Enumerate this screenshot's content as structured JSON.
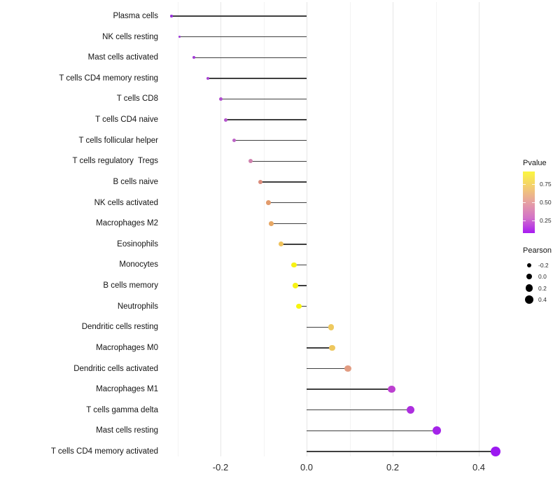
{
  "chart_data": {
    "type": "scatter",
    "subtype": "lollipop",
    "title": "",
    "xlabel": "",
    "ylabel": "",
    "grid": true,
    "x_range": [
      -0.33,
      0.49
    ],
    "x_major_ticks": [
      -0.2,
      0.0,
      0.2,
      0.4
    ],
    "x_major_tick_labels": [
      "-0.2",
      "0.0",
      "0.2",
      "0.4"
    ],
    "x_minor_ticks": [
      -0.3,
      -0.1,
      0.1,
      0.3
    ],
    "baseline_x": 0.0,
    "categories": [
      "Plasma cells",
      "NK cells resting",
      "Mast cells activated",
      "T cells CD4 memory resting",
      "T cells CD8",
      "T cells CD4 naive",
      "T cells follicular helper",
      "T cells regulatory  Tregs",
      "B cells naive",
      "NK cells activated",
      "Macrophages M2",
      "Eosinophils",
      "Monocytes",
      "B cells memory",
      "Neutrophils",
      "Dendritic cells resting",
      "Macrophages M0",
      "Dendritic cells activated",
      "Macrophages M1",
      "T cells gamma delta",
      "Mast cells resting",
      "T cells CD4 memory activated"
    ],
    "points": [
      {
        "label": "Plasma cells",
        "pearson": -0.314,
        "pvalue_est": 0.12,
        "color": "#9733D8",
        "size": 3.4
      },
      {
        "label": "NK cells resting",
        "pearson": -0.295,
        "pvalue_est": 0.13,
        "color": "#9B36D6",
        "size": 3.7
      },
      {
        "label": "Mast cells activated",
        "pearson": -0.262,
        "pvalue_est": 0.15,
        "color": "#A33CD6",
        "size": 4.1
      },
      {
        "label": "T cells CD4 memory resting",
        "pearson": -0.229,
        "pvalue_est": 0.17,
        "color": "#A944D3",
        "size": 4.6
      },
      {
        "label": "T cells CD8",
        "pearson": -0.2,
        "pvalue_est": 0.19,
        "color": "#B04DCF",
        "size": 5.0
      },
      {
        "label": "T cells CD4 naive",
        "pearson": -0.188,
        "pvalue_est": 0.21,
        "color": "#B556CC",
        "size": 5.2
      },
      {
        "label": "T cells follicular helper",
        "pearson": -0.168,
        "pvalue_est": 0.24,
        "color": "#BD64C6",
        "size": 5.4
      },
      {
        "label": "T cells regulatory  Tregs",
        "pearson": -0.13,
        "pvalue_est": 0.37,
        "color": "#CF82AE",
        "size": 6.0
      },
      {
        "label": "B cells naive",
        "pearson": -0.107,
        "pvalue_est": 0.44,
        "color": "#DA8C7C",
        "size": 6.3
      },
      {
        "label": "NK cells activated",
        "pearson": -0.089,
        "pvalue_est": 0.5,
        "color": "#E29B6C",
        "size": 6.6
      },
      {
        "label": "Macrophages M2",
        "pearson": -0.082,
        "pvalue_est": 0.54,
        "color": "#E7A764",
        "size": 6.7
      },
      {
        "label": "Eosinophils",
        "pearson": -0.059,
        "pvalue_est": 0.63,
        "color": "#EFC25C",
        "size": 7.0
      },
      {
        "label": "Monocytes",
        "pearson": -0.029,
        "pvalue_est": 0.86,
        "color": "#F7F214",
        "size": 7.4
      },
      {
        "label": "B cells memory",
        "pearson": -0.026,
        "pvalue_est": 0.86,
        "color": "#F7F214",
        "size": 7.4
      },
      {
        "label": "Neutrophils",
        "pearson": -0.018,
        "pvalue_est": 0.87,
        "color": "#F8F50E",
        "size": 7.5
      },
      {
        "label": "Dendritic cells resting",
        "pearson": 0.057,
        "pvalue_est": 0.66,
        "color": "#EEC95F",
        "size": 8.6
      },
      {
        "label": "Macrophages M0",
        "pearson": 0.059,
        "pvalue_est": 0.66,
        "color": "#EEC75E",
        "size": 8.6
      },
      {
        "label": "Dendritic cells activated",
        "pearson": 0.096,
        "pvalue_est": 0.46,
        "color": "#E29C82",
        "size": 9.1
      },
      {
        "label": "Macrophages M1",
        "pearson": 0.198,
        "pvalue_est": 0.27,
        "color": "#BC40D0",
        "size": 10.6
      },
      {
        "label": "T cells gamma delta",
        "pearson": 0.242,
        "pvalue_est": 0.17,
        "color": "#AD2EDF",
        "size": 11.2
      },
      {
        "label": "Mast cells resting",
        "pearson": 0.303,
        "pvalue_est": 0.11,
        "color": "#A424E9",
        "size": 12.0
      },
      {
        "label": "T cells CD4 memory activated",
        "pearson": 0.439,
        "pvalue_est": 0.04,
        "color": "#9C19F1",
        "size": 13.9
      }
    ],
    "legend_pvalue": {
      "title": "Pvalue",
      "tick_labels": [
        "0.75",
        "0.50",
        "0.25"
      ],
      "gradient_colors": [
        "#FBF63F",
        "#F2CA74",
        "#E59DA5",
        "#D271C9",
        "#A81BF2"
      ],
      "gradient_stops_pct": [
        0,
        27,
        52,
        76,
        100
      ]
    },
    "legend_pearson": {
      "title": "Pearson",
      "entries": [
        {
          "label": "-0.2",
          "size": 6.0
        },
        {
          "label": "0.0",
          "size": 8.0
        },
        {
          "label": "0.2",
          "size": 10.3
        },
        {
          "label": "0.4",
          "size": 12.6
        }
      ]
    },
    "colors": {
      "stem": "#3f3f3f",
      "grid_major": "#e6e6e6",
      "grid_minor": "#f3f3f3",
      "background": "#ffffff",
      "legend_dot": "#000000"
    }
  }
}
